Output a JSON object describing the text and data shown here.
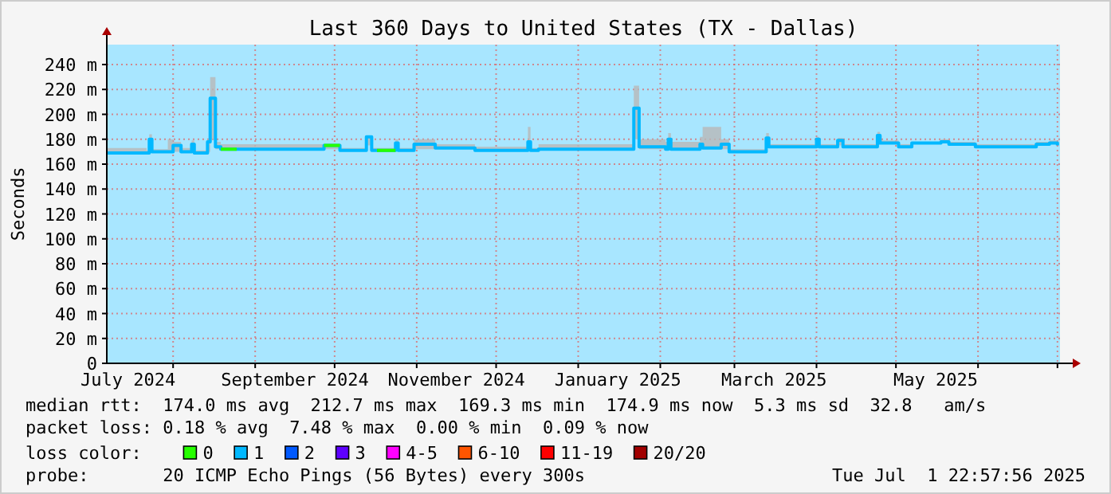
{
  "chart_data": {
    "type": "step",
    "title": "Last 360 Days to United States (TX - Dallas)",
    "ylabel": "Seconds",
    "xlim": [
      "2024-07-06T23:00",
      "2025-07-01T23:00"
    ],
    "xticks": [
      {
        "value": "2024-07-15",
        "label": "July 2024"
      },
      {
        "value": "2024-08-01",
        "label": null
      },
      {
        "value": "2024-09-01",
        "label": null
      },
      {
        "value": "2024-09-16",
        "label": "September 2024"
      },
      {
        "value": "2024-10-01",
        "label": null
      },
      {
        "value": "2024-11-01",
        "label": null
      },
      {
        "value": "2024-11-16",
        "label": "November 2024"
      },
      {
        "value": "2024-12-01",
        "label": null
      },
      {
        "value": "2025-01-01",
        "label": null
      },
      {
        "value": "2025-01-16",
        "label": "January 2025"
      },
      {
        "value": "2025-02-01",
        "label": null
      },
      {
        "value": "2025-03-01",
        "label": null
      },
      {
        "value": "2025-03-16",
        "label": "March 2025"
      },
      {
        "value": "2025-04-01",
        "label": null
      },
      {
        "value": "2025-05-01",
        "label": null
      },
      {
        "value": "2025-05-16",
        "label": "May 2025"
      },
      {
        "value": "2025-06-01",
        "label": null
      },
      {
        "value": "2025-07-01",
        "label": null
      }
    ],
    "ylim": [
      0,
      256
    ],
    "yticks": [
      0,
      {
        "value": 20,
        "label": "20 m"
      },
      {
        "value": 40,
        "label": "40 m"
      },
      {
        "value": 60,
        "label": "60 m"
      },
      {
        "value": 80,
        "label": "80 m"
      },
      {
        "value": 100,
        "label": "100 m"
      },
      {
        "value": 120,
        "label": "120 m"
      },
      {
        "value": 140,
        "label": "140 m"
      },
      {
        "value": 160,
        "label": "160 m"
      },
      {
        "value": 180,
        "label": "180 m"
      },
      {
        "value": 200,
        "label": "200 m"
      },
      {
        "value": 220,
        "label": "220 m"
      },
      {
        "value": 240,
        "label": "240 m"
      }
    ],
    "grid": true,
    "legend": "bottom",
    "legend_title": "loss color:",
    "series": [
      {
        "name": "0",
        "color": "#26ff00",
        "x": [
          "2024-08-19",
          "2024-08-25",
          "2024-08-26",
          "2024-09-27",
          "2024-10-03",
          "2024-10-04",
          "2024-10-17",
          "2024-10-24"
        ],
        "values": [
          172,
          172,
          null,
          175,
          175,
          null,
          171,
          171
        ]
      },
      {
        "name": "1",
        "color": "#00b8ff",
        "x": [
          "2024-07-07",
          "2024-07-22",
          "2024-07-23",
          "2024-07-24",
          "2024-07-30",
          "2024-08-01",
          "2024-08-04",
          "2024-08-08",
          "2024-08-09",
          "2024-08-14",
          "2024-08-15",
          "2024-08-17",
          "2024-08-19",
          "2024-09-27",
          "2024-10-03",
          "2024-10-13",
          "2024-10-15",
          "2024-10-24",
          "2024-10-25",
          "2024-10-31",
          "2024-11-08",
          "2024-11-23",
          "2024-12-13",
          "2024-12-14",
          "2024-12-17",
          "2025-01-22",
          "2025-01-24",
          "2025-02-03",
          "2025-02-04",
          "2025-02-05",
          "2025-02-16",
          "2025-02-17",
          "2025-02-24",
          "2025-02-27",
          "2025-03-13",
          "2025-03-14",
          "2025-04-01",
          "2025-04-02",
          "2025-04-09",
          "2025-04-11",
          "2025-04-24",
          "2025-04-25",
          "2025-05-02",
          "2025-05-07",
          "2025-05-18",
          "2025-05-21",
          "2025-05-31",
          "2025-06-14",
          "2025-06-23",
          "2025-06-28",
          "2025-07-01"
        ],
        "values": [
          169,
          169,
          180,
          170,
          170,
          175,
          170,
          176,
          169,
          178,
          213,
          174,
          172,
          175,
          171,
          182,
          171,
          177,
          171,
          176,
          173,
          171,
          178,
          171,
          172,
          205,
          174,
          172,
          180,
          172,
          176,
          173,
          176,
          170,
          181,
          174,
          180,
          174,
          179,
          174,
          183,
          177,
          174,
          177,
          178,
          176,
          174,
          174,
          176,
          177,
          175
        ],
        "lower": [
          169,
          169,
          175,
          170,
          170,
          170,
          170,
          170,
          169,
          170,
          180,
          172,
          171,
          172,
          171,
          175,
          171,
          172,
          171,
          172,
          172,
          171,
          172,
          171,
          172,
          180,
          172,
          172,
          175,
          172,
          172,
          172,
          172,
          170,
          175,
          174,
          175,
          174,
          175,
          174,
          178,
          177,
          174,
          177,
          178,
          176,
          174,
          174,
          176,
          177,
          175
        ],
        "upper": [
          173,
          171,
          184,
          172,
          180,
          178,
          173,
          179,
          171,
          180,
          230,
          178,
          176,
          176,
          173,
          183,
          173,
          180,
          173,
          180,
          176,
          174,
          190,
          173,
          176,
          223,
          180,
          178,
          185,
          178,
          182,
          190,
          180,
          172,
          185,
          176,
          182,
          176,
          181,
          176,
          186,
          179,
          176,
          178,
          180,
          178,
          176,
          176,
          178,
          179,
          176
        ]
      },
      {
        "name": "2",
        "color": "#0059ff"
      },
      {
        "name": "3",
        "color": "#5e00ff"
      },
      {
        "name": "4-5",
        "color": "#ff00ff"
      },
      {
        "name": "6-10",
        "color": "#ff5500"
      },
      {
        "name": "11-19",
        "color": "#ff0000"
      },
      {
        "name": "20/20",
        "color": "#a10000"
      }
    ],
    "annotations": [
      "median rtt:  174.0 ms avg  212.7 ms max  169.3 ms min  174.9 ms now  5.3 ms sd  32.8   am/s",
      "packet loss: 0.18 % avg  7.48 % max  0.00 % min  0.09 % now",
      "probe:       20 ICMP Echo Pings (56 Bytes) every 300s",
      "Tue Jul  1 22:57:56 2025"
    ]
  }
}
